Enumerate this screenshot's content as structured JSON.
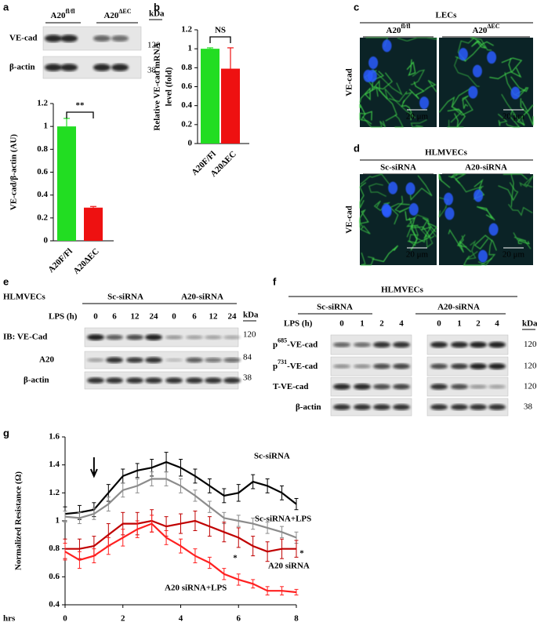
{
  "panel_labels": [
    "a",
    "b",
    "c",
    "d",
    "e",
    "f",
    "g"
  ],
  "panel_a_blot": {
    "groups": [
      {
        "base": "A20",
        "sup": "fl/fl"
      },
      {
        "base": "A20",
        "sup": "ΔEC"
      }
    ],
    "unit": "kDa",
    "rows": [
      {
        "label": "VE-cad",
        "kda": 120
      },
      {
        "label": "β-actin",
        "kda": 38
      }
    ]
  },
  "panel_c": {
    "title": "LECs",
    "columns": [
      {
        "base": "A20",
        "sup": "fl/fl"
      },
      {
        "base": "A20",
        "sup": "ΔEC"
      }
    ],
    "row_label": "VE-cad",
    "scale_bar": "20 μm"
  },
  "panel_d": {
    "title": "HLMVECs",
    "columns": [
      "Sc-siRNA",
      "A20-siRNA"
    ],
    "row_label": "VE-cad",
    "scale_bar": "20 μm"
  },
  "panel_e": {
    "cell": "HLMVECs",
    "groups": [
      "Sc-siRNA",
      "A20-siRNA"
    ],
    "lps_label": "LPS (h)",
    "lanes": [
      0,
      6,
      12,
      24,
      0,
      6,
      12,
      24
    ],
    "unit": "kDa",
    "rows": [
      {
        "label": "IB: VE-Cad",
        "kda": 120
      },
      {
        "label": "A20",
        "kda": 84
      },
      {
        "label": "β-actin",
        "kda": 38
      }
    ]
  },
  "panel_f": {
    "cell": "HLMVECs",
    "groups": [
      "Sc-siRNA",
      "A20-siRNA"
    ],
    "lps_label": "LPS (h)",
    "lanes": [
      0,
      1,
      2,
      4,
      0,
      1,
      2,
      4
    ],
    "unit": "kDa",
    "rows": [
      {
        "pre": "p",
        "sup": "685",
        "post": "-VE-cad",
        "kda": 120
      },
      {
        "pre": "p",
        "sup": "731",
        "post": "-VE-cad",
        "kda": 120
      },
      {
        "pre": "T-VE-cad",
        "sup": "",
        "post": "",
        "kda": 120
      },
      {
        "pre": "β-actin",
        "sup": "",
        "post": "",
        "kda": 38
      }
    ]
  },
  "chart_data": [
    {
      "type": "bar",
      "y_label": [
        "VE-cad/β-actin (AU)"
      ],
      "categories": [
        "A20F/Fl",
        "A20ΔEC"
      ],
      "values": [
        1.0,
        0.29
      ],
      "errors": [
        0.07,
        0.01
      ],
      "colors": [
        "#22dd22",
        "#ee1111"
      ],
      "ylim": [
        0,
        1.2
      ],
      "yticks": [
        0,
        0.2,
        0.4,
        0.6,
        0.8,
        1,
        1.2
      ],
      "significance": "**"
    },
    {
      "type": "bar",
      "y_label": [
        "Relative VE-cad mRNA",
        "level (fold)"
      ],
      "categories": [
        "A20F/Fl",
        "A20ΔEC"
      ],
      "values": [
        1.0,
        0.79
      ],
      "errors": [
        0.01,
        0.22
      ],
      "colors": [
        "#22dd22",
        "#ee1111"
      ],
      "ylim": [
        0,
        1.2
      ],
      "yticks": [
        0,
        0.2,
        0.4,
        0.6,
        0.8,
        1,
        1.2
      ],
      "significance": "NS"
    },
    {
      "type": "line",
      "y_label": [
        "Normalized Resistance (Ω)"
      ],
      "x_label": "hrs",
      "x": [
        0,
        0.5,
        1,
        1.5,
        2,
        2.5,
        3,
        3.5,
        4,
        4.5,
        5,
        5.5,
        6,
        6.5,
        7,
        7.5,
        8
      ],
      "xlim": [
        0,
        8
      ],
      "xticks": [
        0,
        2,
        4,
        6,
        8
      ],
      "ylim": [
        0.4,
        1.6
      ],
      "yticks": [
        0.4,
        0.6,
        0.8,
        1,
        1.2,
        1.4,
        1.6
      ],
      "series": [
        {
          "name": "Sc-siRNA",
          "color": "#000000",
          "values": [
            1.05,
            1.06,
            1.08,
            1.2,
            1.32,
            1.36,
            1.38,
            1.42,
            1.38,
            1.32,
            1.25,
            1.18,
            1.2,
            1.28,
            1.25,
            1.2,
            1.12
          ],
          "errors": [
            0.05,
            0.05,
            0.05,
            0.06,
            0.05,
            0.05,
            0.06,
            0.07,
            0.06,
            0.05,
            0.05,
            0.05,
            0.06,
            0.05,
            0.05,
            0.05,
            0.04
          ]
        },
        {
          "name": "Sc-siRNA+LPS",
          "color": "#8c8c8c",
          "values": [
            1.03,
            1.02,
            1.05,
            1.12,
            1.22,
            1.25,
            1.3,
            1.3,
            1.25,
            1.18,
            1.1,
            1.02,
            1.0,
            0.98,
            0.95,
            0.92,
            0.88
          ],
          "errors": [
            0.04,
            0.04,
            0.04,
            0.05,
            0.05,
            0.05,
            0.05,
            0.05,
            0.05,
            0.04,
            0.04,
            0.04,
            0.04,
            0.04,
            0.04,
            0.04,
            0.04
          ]
        },
        {
          "name": "A20 siRNA",
          "color": "#c00000",
          "values": [
            0.8,
            0.8,
            0.82,
            0.9,
            0.98,
            0.98,
            1.0,
            0.96,
            0.98,
            1.0,
            0.96,
            0.92,
            0.88,
            0.82,
            0.78,
            0.8,
            0.8
          ],
          "errors": [
            0.07,
            0.07,
            0.07,
            0.08,
            0.08,
            0.08,
            0.08,
            0.07,
            0.07,
            0.07,
            0.07,
            0.07,
            0.07,
            0.07,
            0.07,
            0.07,
            0.06
          ]
        },
        {
          "name": "A20 siRNA+LPS",
          "color": "#ff2020",
          "values": [
            0.78,
            0.72,
            0.75,
            0.82,
            0.88,
            0.94,
            0.98,
            0.88,
            0.82,
            0.75,
            0.7,
            0.62,
            0.58,
            0.55,
            0.5,
            0.5,
            0.49
          ],
          "errors": [
            0.06,
            0.06,
            0.05,
            0.06,
            0.06,
            0.06,
            0.06,
            0.05,
            0.05,
            0.05,
            0.04,
            0.04,
            0.04,
            0.03,
            0.03,
            0.03,
            0.02
          ]
        }
      ],
      "annotations": [
        "*",
        "*"
      ]
    }
  ]
}
